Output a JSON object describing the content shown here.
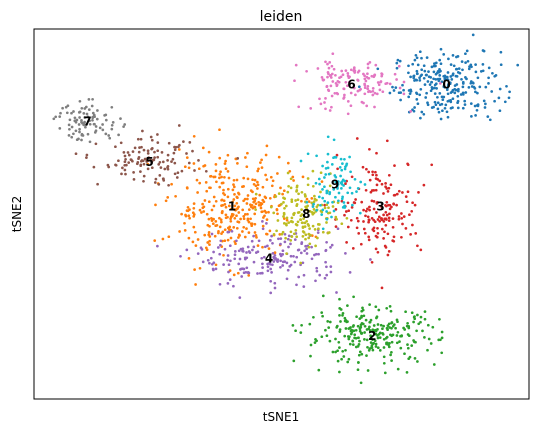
{
  "chart_data": {
    "type": "scatter",
    "title": "leiden",
    "xlabel": "tSNE1",
    "ylabel": "tSNE2",
    "xlim": [
      -60,
      60
    ],
    "ylim": [
      -50,
      50
    ],
    "ticks_visible": false,
    "grid": false,
    "clusters": [
      {
        "label": "0",
        "color": "#1f77b4",
        "n": 260,
        "center": [
          40,
          35
        ],
        "spread": [
          6.5,
          4.5
        ]
      },
      {
        "label": "1",
        "color": "#ff7f0e",
        "n": 330,
        "center": [
          -12,
          2
        ],
        "spread": [
          7.5,
          7.0
        ]
      },
      {
        "label": "2",
        "color": "#2ca02c",
        "n": 260,
        "center": [
          22,
          -33
        ],
        "spread": [
          8.0,
          3.8
        ]
      },
      {
        "label": "3",
        "color": "#d62728",
        "n": 170,
        "center": [
          24,
          2
        ],
        "spread": [
          5.0,
          6.5
        ]
      },
      {
        "label": "4",
        "color": "#9467bd",
        "n": 190,
        "center": [
          -3,
          -12
        ],
        "spread": [
          9.0,
          3.8
        ]
      },
      {
        "label": "5",
        "color": "#8c564b",
        "n": 120,
        "center": [
          -32,
          14
        ],
        "spread": [
          6.0,
          3.0
        ]
      },
      {
        "label": "6",
        "color": "#e377c2",
        "n": 140,
        "center": [
          17,
          35
        ],
        "spread": [
          6.0,
          3.5
        ]
      },
      {
        "label": "7",
        "color": "#7f7f7f",
        "n": 90,
        "center": [
          -47,
          25
        ],
        "spread": [
          4.0,
          2.5
        ]
      },
      {
        "label": "8",
        "color": "#bcbd22",
        "n": 150,
        "center": [
          6,
          0
        ],
        "spread": [
          4.0,
          4.5
        ]
      },
      {
        "label": "9",
        "color": "#17becf",
        "n": 90,
        "center": [
          13,
          8
        ],
        "spread": [
          3.5,
          5.0
        ]
      }
    ]
  }
}
